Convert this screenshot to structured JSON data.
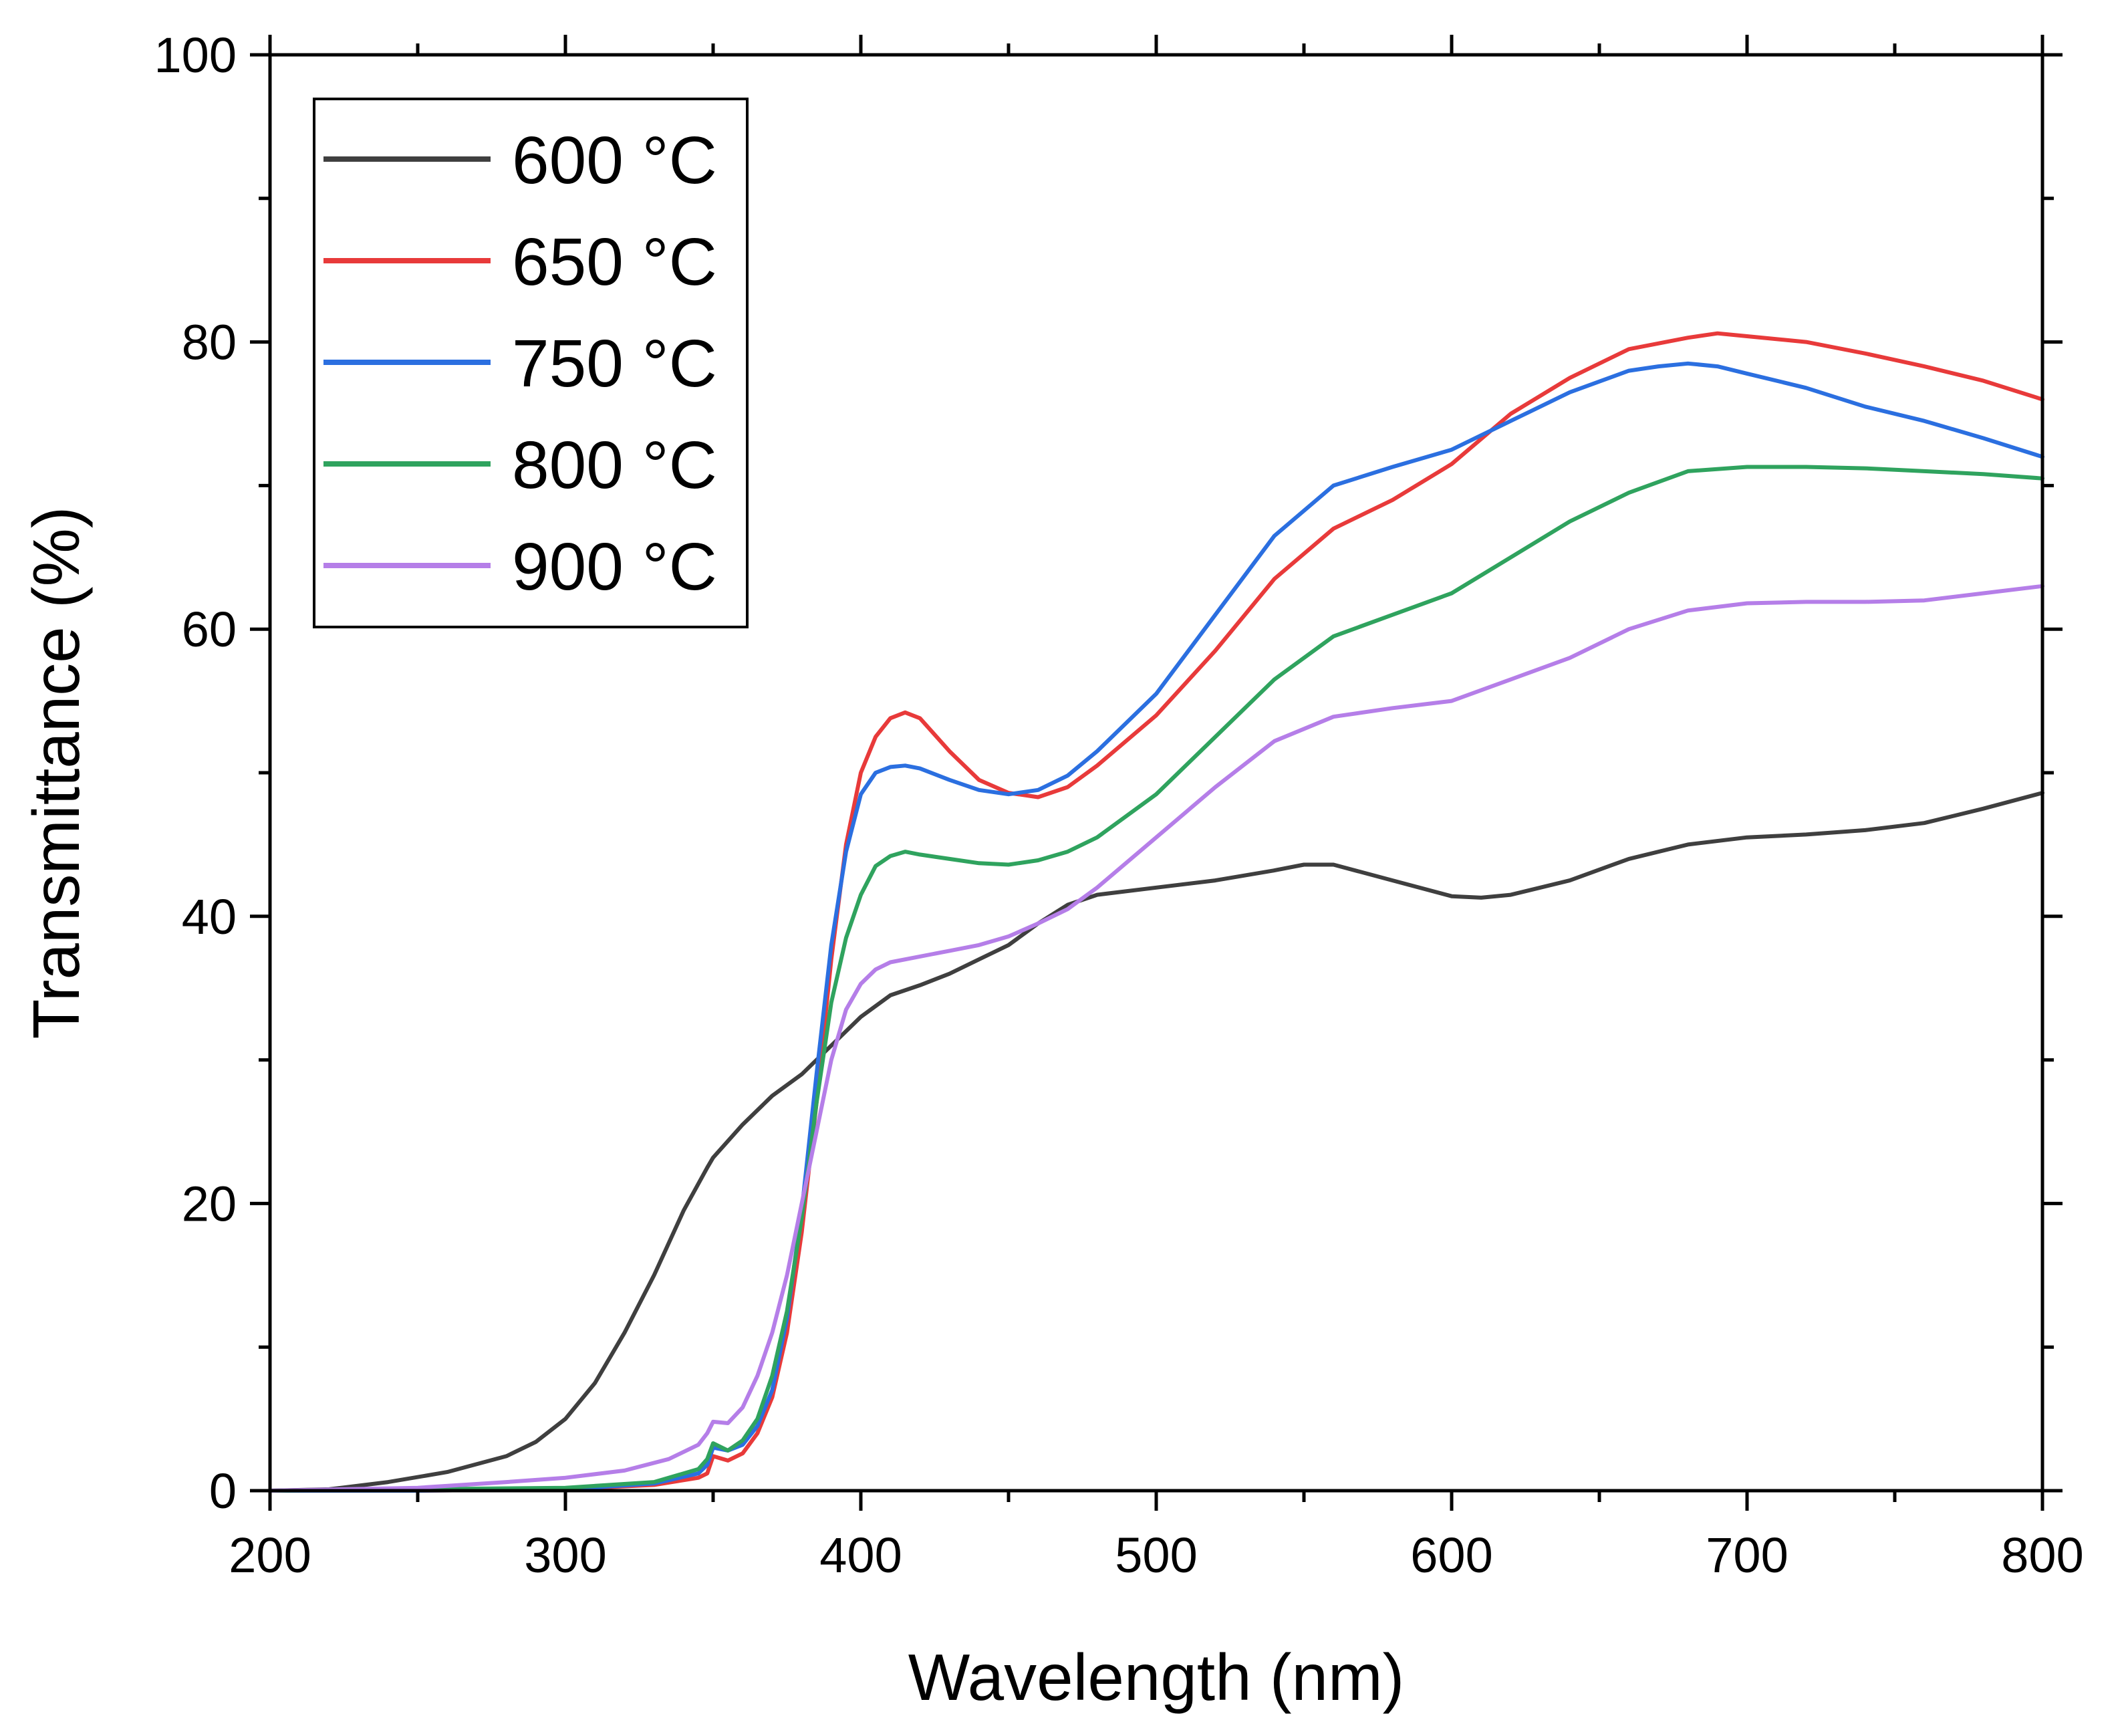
{
  "chart_data": {
    "type": "line",
    "xlabel": "Wavelength (nm)",
    "ylabel": "Transmittance (%)",
    "xlim": [
      200,
      800
    ],
    "ylim": [
      0,
      100
    ],
    "xticks": [
      200,
      300,
      400,
      500,
      600,
      700,
      800
    ],
    "yticks": [
      0,
      20,
      40,
      60,
      80,
      100
    ],
    "grid": false,
    "legend_position": "top-left",
    "series": [
      {
        "name": "600 °C",
        "color": "#3f3f3f",
        "x": [
          200,
          220,
          240,
          260,
          280,
          290,
          300,
          310,
          320,
          330,
          340,
          348,
          350,
          360,
          370,
          380,
          390,
          400,
          410,
          420,
          430,
          440,
          450,
          460,
          470,
          480,
          500,
          520,
          540,
          550,
          560,
          580,
          600,
          610,
          620,
          640,
          660,
          680,
          700,
          720,
          740,
          760,
          780,
          800
        ],
        "y": [
          0,
          0.1,
          0.6,
          1.3,
          2.4,
          3.4,
          5.0,
          7.5,
          11.0,
          15.0,
          19.5,
          22.5,
          23.2,
          25.5,
          27.5,
          29.0,
          31.0,
          33.0,
          34.5,
          35.2,
          36.0,
          37.0,
          38.0,
          39.5,
          40.8,
          41.5,
          42.0,
          42.5,
          43.2,
          43.6,
          43.6,
          42.5,
          41.4,
          41.3,
          41.5,
          42.5,
          44.0,
          45.0,
          45.5,
          45.7,
          46.0,
          46.5,
          47.5,
          48.6
        ]
      },
      {
        "name": "650 °C",
        "color": "#e83a3a",
        "x": [
          200,
          250,
          300,
          330,
          345,
          348,
          350,
          355,
          360,
          365,
          370,
          375,
          380,
          385,
          390,
          395,
          400,
          405,
          410,
          415,
          420,
          430,
          440,
          450,
          460,
          470,
          480,
          500,
          520,
          540,
          560,
          580,
          600,
          620,
          640,
          660,
          680,
          690,
          700,
          720,
          740,
          760,
          780,
          800
        ],
        "y": [
          0,
          0,
          0.1,
          0.4,
          0.9,
          1.2,
          2.4,
          2.1,
          2.6,
          4.0,
          6.5,
          11.0,
          18.0,
          27.0,
          37.0,
          45.0,
          50.0,
          52.5,
          53.8,
          54.2,
          53.8,
          51.5,
          49.5,
          48.6,
          48.3,
          49.0,
          50.5,
          54.0,
          58.5,
          63.5,
          67.0,
          69.0,
          71.5,
          75.0,
          77.5,
          79.5,
          80.3,
          80.6,
          80.4,
          80.0,
          79.2,
          78.3,
          77.3,
          76.0
        ]
      },
      {
        "name": "750 °C",
        "color": "#2b6fe0",
        "x": [
          200,
          250,
          300,
          330,
          345,
          348,
          350,
          355,
          360,
          365,
          370,
          375,
          380,
          385,
          390,
          395,
          400,
          405,
          410,
          415,
          420,
          430,
          440,
          450,
          460,
          470,
          480,
          500,
          520,
          540,
          560,
          580,
          600,
          620,
          640,
          660,
          670,
          680,
          690,
          700,
          720,
          740,
          760,
          780,
          800
        ],
        "y": [
          0,
          0,
          0.1,
          0.5,
          1.2,
          1.8,
          3.0,
          2.8,
          3.2,
          4.5,
          7.0,
          12.0,
          19.5,
          29.0,
          38.0,
          44.5,
          48.5,
          50.0,
          50.4,
          50.5,
          50.3,
          49.5,
          48.8,
          48.5,
          48.8,
          49.8,
          51.5,
          55.5,
          61.0,
          66.5,
          70.0,
          71.3,
          72.5,
          74.5,
          76.5,
          78.0,
          78.3,
          78.5,
          78.3,
          77.8,
          76.8,
          75.5,
          74.5,
          73.3,
          72.0
        ]
      },
      {
        "name": "800 °C",
        "color": "#2fa35e",
        "x": [
          200,
          250,
          300,
          330,
          345,
          348,
          350,
          355,
          360,
          365,
          370,
          375,
          380,
          385,
          390,
          395,
          400,
          405,
          410,
          415,
          420,
          430,
          440,
          450,
          460,
          470,
          480,
          500,
          520,
          540,
          560,
          580,
          600,
          620,
          640,
          660,
          680,
          700,
          720,
          740,
          760,
          780,
          800
        ],
        "y": [
          0,
          0.1,
          0.2,
          0.6,
          1.5,
          2.2,
          3.3,
          2.8,
          3.5,
          5.0,
          8.0,
          12.5,
          19.0,
          27.0,
          34.0,
          38.5,
          41.5,
          43.5,
          44.2,
          44.5,
          44.3,
          44.0,
          43.7,
          43.6,
          43.9,
          44.5,
          45.5,
          48.5,
          52.5,
          56.5,
          59.5,
          61.0,
          62.5,
          65.0,
          67.5,
          69.5,
          71.0,
          71.3,
          71.3,
          71.2,
          71.0,
          70.8,
          70.5
        ]
      },
      {
        "name": "900 °C",
        "color": "#b57ee8",
        "x": [
          200,
          250,
          280,
          300,
          320,
          335,
          345,
          348,
          350,
          355,
          360,
          365,
          370,
          375,
          380,
          385,
          390,
          395,
          400,
          405,
          410,
          420,
          430,
          440,
          450,
          460,
          470,
          480,
          500,
          520,
          540,
          560,
          580,
          600,
          620,
          640,
          660,
          680,
          700,
          720,
          740,
          760,
          780,
          800
        ],
        "y": [
          0,
          0.2,
          0.6,
          0.9,
          1.4,
          2.2,
          3.2,
          4.0,
          4.8,
          4.7,
          5.8,
          8.0,
          11.0,
          15.0,
          20.0,
          25.0,
          30.0,
          33.5,
          35.3,
          36.3,
          36.8,
          37.2,
          37.6,
          38.0,
          38.6,
          39.5,
          40.5,
          42.0,
          45.5,
          49.0,
          52.2,
          53.9,
          54.5,
          55.0,
          56.5,
          58.0,
          60.0,
          61.3,
          61.8,
          61.9,
          61.9,
          62.0,
          62.5,
          63.0
        ]
      }
    ]
  }
}
